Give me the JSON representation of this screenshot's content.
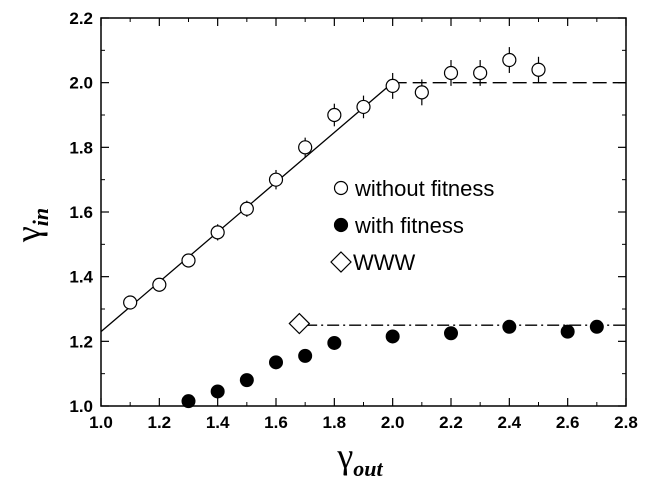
{
  "chart_data": {
    "type": "scatter",
    "xlabel": "γ",
    "xlabel_sub": "out",
    "ylabel": "γ",
    "ylabel_sub": "in",
    "xlim": [
      1.0,
      2.8
    ],
    "ylim": [
      1.0,
      2.2
    ],
    "x_ticks": [
      "1.0",
      "1.2",
      "1.4",
      "1.6",
      "1.8",
      "2.0",
      "2.2",
      "2.4",
      "2.6",
      "2.8"
    ],
    "y_ticks": [
      "1.0",
      "1.2",
      "1.4",
      "1.6",
      "1.8",
      "2.0",
      "2.2"
    ],
    "grid": false,
    "legend_position": "center-right",
    "series": [
      {
        "name": "without fitness",
        "marker": "open-circle",
        "x": [
          1.1,
          1.2,
          1.3,
          1.4,
          1.5,
          1.6,
          1.7,
          1.8,
          1.9,
          2.0,
          2.1,
          2.2,
          2.3,
          2.4,
          2.5
        ],
        "y": [
          1.32,
          1.375,
          1.45,
          1.537,
          1.61,
          1.7,
          1.8,
          1.9,
          1.925,
          1.99,
          1.97,
          2.03,
          2.03,
          2.07,
          2.04
        ],
        "yerr": [
          0.02,
          0.02,
          0.02,
          0.025,
          0.025,
          0.03,
          0.03,
          0.035,
          0.035,
          0.04,
          0.04,
          0.04,
          0.04,
          0.04,
          0.04
        ]
      },
      {
        "name": "with fitness",
        "marker": "filled-circle",
        "x": [
          1.3,
          1.4,
          1.5,
          1.6,
          1.7,
          1.8,
          2.0,
          2.2,
          2.4,
          2.6,
          2.7
        ],
        "y": [
          1.015,
          1.045,
          1.08,
          1.135,
          1.155,
          1.195,
          1.215,
          1.225,
          1.245,
          1.23,
          1.245
        ]
      },
      {
        "name": "WWW",
        "marker": "open-diamond",
        "x": [
          1.68
        ],
        "y": [
          1.255
        ]
      }
    ],
    "reference_lines": {
      "solid_fit": {
        "style": "solid",
        "x": [
          1.0,
          2.0
        ],
        "y": [
          1.23,
          2.0
        ]
      },
      "dashed": {
        "style": "dashed",
        "x": [
          2.0,
          2.8
        ],
        "y": [
          2.0,
          2.0
        ]
      },
      "dash_dot": {
        "style": "dash-dot",
        "x": [
          1.7,
          2.8
        ],
        "y": [
          1.25,
          1.25
        ]
      }
    }
  }
}
